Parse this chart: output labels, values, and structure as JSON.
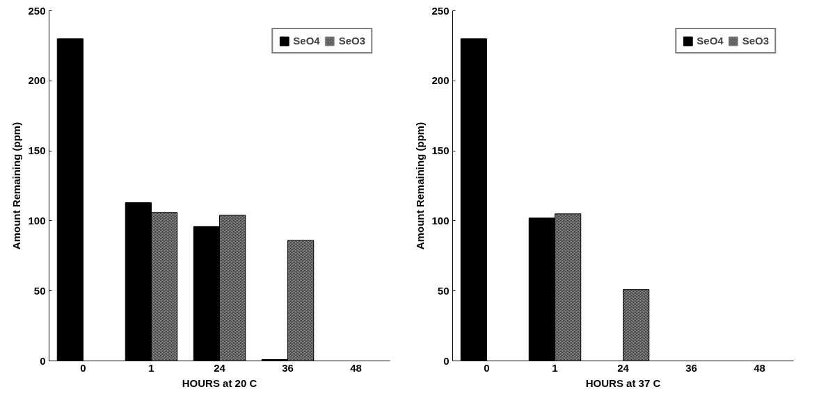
{
  "chart_data": [
    {
      "type": "bar",
      "xlabel": "HOURS at 20 C",
      "ylabel": "Amount Remaining (ppm)",
      "categories": [
        "0",
        "1",
        "24",
        "36",
        "48"
      ],
      "series": [
        {
          "name": "SeO4",
          "color": "#000000",
          "values": [
            230,
            113,
            96,
            1,
            0
          ]
        },
        {
          "name": "SeO3",
          "color": "#8c8c8c",
          "values": [
            0,
            106,
            104,
            86,
            0
          ]
        }
      ],
      "ylim": [
        0,
        250
      ],
      "yticks": [
        0,
        50,
        100,
        150,
        200,
        250
      ],
      "grid": false,
      "legend": "top right"
    },
    {
      "type": "bar",
      "xlabel": "HOURS at 37 C",
      "ylabel": "Amount Remaining (ppm)",
      "categories": [
        "0",
        "1",
        "24",
        "36",
        "48"
      ],
      "series": [
        {
          "name": "SeO4",
          "color": "#000000",
          "values": [
            230,
            102,
            0,
            0,
            0
          ]
        },
        {
          "name": "SeO3",
          "color": "#8c8c8c",
          "values": [
            0,
            105,
            51,
            0,
            0
          ]
        }
      ],
      "ylim": [
        0,
        250
      ],
      "yticks": [
        0,
        50,
        100,
        150,
        200,
        250
      ],
      "grid": false,
      "legend": "top right"
    }
  ]
}
